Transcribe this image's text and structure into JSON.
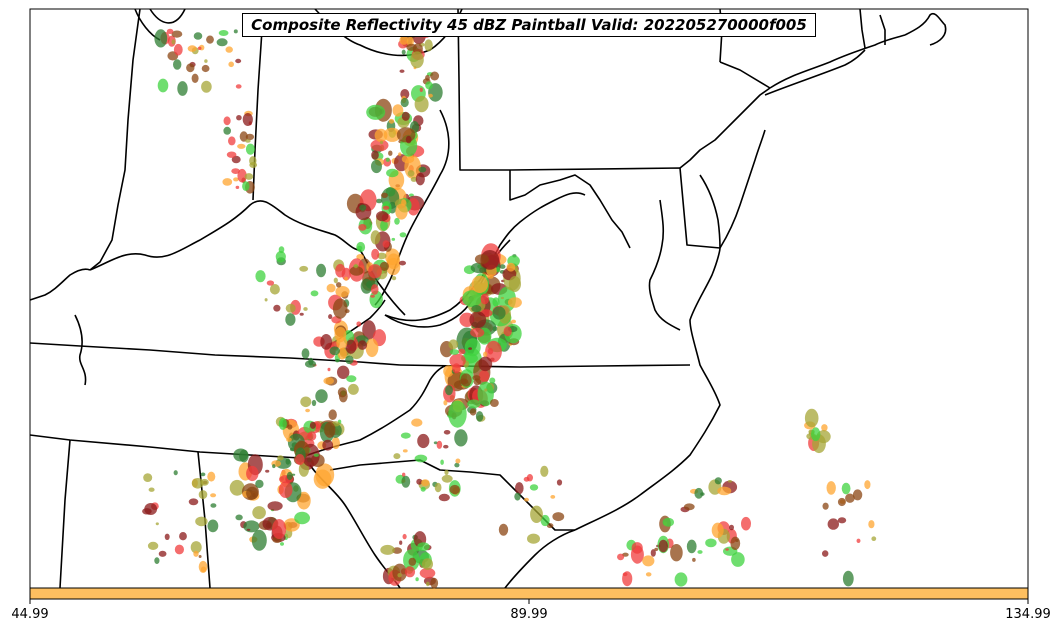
{
  "title": "Composite Reflectivity 45 dBZ Paintball Valid: 202205270000f005",
  "colorbar": {
    "color": "#fdbf60",
    "ticks": [
      "44.99",
      "89.99",
      "134.99"
    ]
  },
  "colors": {
    "orange": "#ffa530",
    "red": "#f03c3c",
    "dark_red": "#8b1a1a",
    "green": "#3fd33f",
    "dark_green": "#2e7d32",
    "olive": "#a6a636",
    "brown": "#8b4513",
    "border": "#000000"
  }
}
